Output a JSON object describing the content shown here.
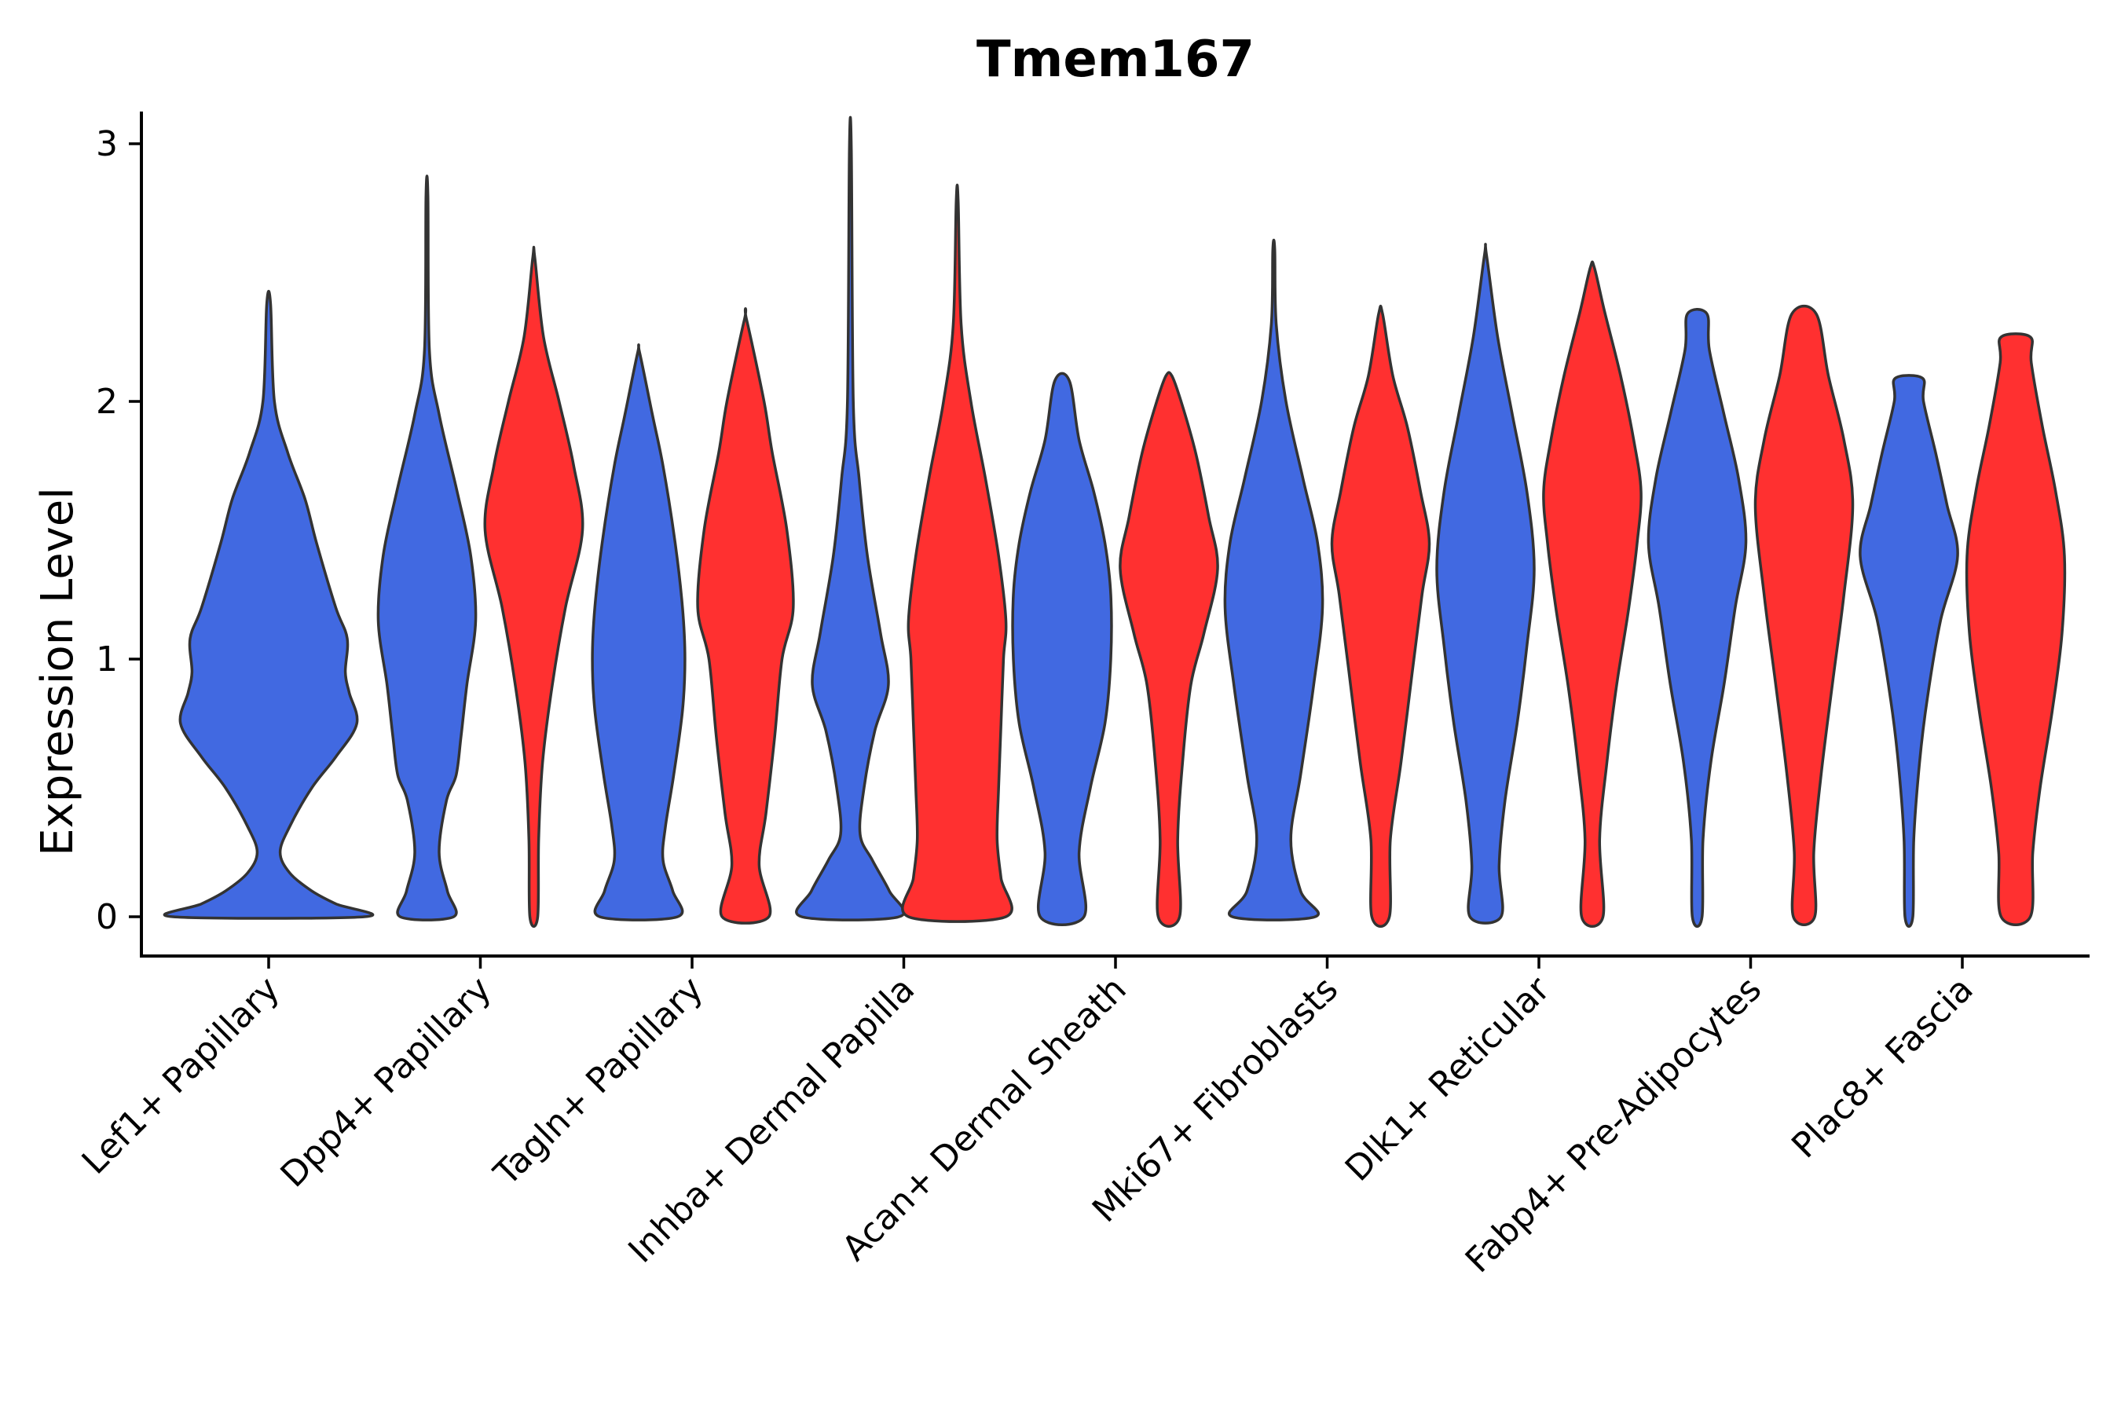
{
  "chart_data": {
    "type": "violin",
    "title": "Tmem167",
    "xlabel": "",
    "ylabel": "Expression Level",
    "ylim": [
      -0.15,
      3.1
    ],
    "yticks": [
      0,
      1,
      2,
      3
    ],
    "grid": false,
    "colors": {
      "blue": "#4169E1",
      "red": "#FF3030"
    },
    "categories": [
      "Lef1+ Papillary",
      "Dpp4+ Papillary",
      "Tagln+ Papillary",
      "Inhba+ Dermal Papilla",
      "Acan+ Dermal Sheath",
      "Mki67+ Fibroblasts",
      "Dlk1+ Reticular",
      "Fabp4+ Pre-Adipocytes",
      "Plac8+ Fascia"
    ],
    "violins": [
      {
        "category": "Lef1+ Papillary",
        "group": "blue",
        "max": 2.38,
        "profile": [
          [
            0,
            1.0
          ],
          [
            0.05,
            0.7
          ],
          [
            0.1,
            0.45
          ],
          [
            0.17,
            0.22
          ],
          [
            0.25,
            0.12
          ],
          [
            0.35,
            0.22
          ],
          [
            0.5,
            0.45
          ],
          [
            0.62,
            0.7
          ],
          [
            0.75,
            0.92
          ],
          [
            0.87,
            0.84
          ],
          [
            0.95,
            0.8
          ],
          [
            1.08,
            0.82
          ],
          [
            1.2,
            0.7
          ],
          [
            1.45,
            0.5
          ],
          [
            1.62,
            0.38
          ],
          [
            1.8,
            0.2
          ],
          [
            2.0,
            0.06
          ],
          [
            2.38,
            0.02
          ]
        ]
      },
      {
        "category": "Dpp4+ Papillary",
        "group": "blue",
        "max": 2.8,
        "profile": [
          [
            0,
            0.55
          ],
          [
            0.1,
            0.42
          ],
          [
            0.25,
            0.25
          ],
          [
            0.45,
            0.4
          ],
          [
            0.55,
            0.6
          ],
          [
            0.7,
            0.7
          ],
          [
            0.9,
            0.82
          ],
          [
            1.15,
            1.0
          ],
          [
            1.4,
            0.9
          ],
          [
            1.65,
            0.62
          ],
          [
            1.95,
            0.25
          ],
          [
            2.2,
            0.05
          ],
          [
            2.8,
            0.02
          ]
        ]
      },
      {
        "category": "Dpp4+ Papillary",
        "group": "red",
        "max": 2.56,
        "profile": [
          [
            0,
            0.08
          ],
          [
            0.3,
            0.1
          ],
          [
            0.6,
            0.18
          ],
          [
            0.9,
            0.38
          ],
          [
            1.2,
            0.65
          ],
          [
            1.5,
            1.0
          ],
          [
            1.75,
            0.82
          ],
          [
            2.0,
            0.52
          ],
          [
            2.25,
            0.2
          ],
          [
            2.56,
            0.02
          ]
        ]
      },
      {
        "category": "Tagln+ Papillary",
        "group": "blue",
        "max": 2.19,
        "profile": [
          [
            0,
            0.8
          ],
          [
            0.1,
            0.7
          ],
          [
            0.22,
            0.5
          ],
          [
            0.35,
            0.55
          ],
          [
            0.55,
            0.72
          ],
          [
            0.8,
            0.9
          ],
          [
            1.0,
            0.95
          ],
          [
            1.2,
            0.9
          ],
          [
            1.45,
            0.75
          ],
          [
            1.75,
            0.5
          ],
          [
            1.95,
            0.28
          ],
          [
            2.19,
            0.02
          ]
        ]
      },
      {
        "category": "Tagln+ Papillary",
        "group": "red",
        "max": 2.32,
        "profile": [
          [
            0,
            0.48
          ],
          [
            0.2,
            0.28
          ],
          [
            0.4,
            0.42
          ],
          [
            0.7,
            0.6
          ],
          [
            1.0,
            0.75
          ],
          [
            1.2,
            0.98
          ],
          [
            1.5,
            0.85
          ],
          [
            1.8,
            0.55
          ],
          [
            2.0,
            0.38
          ],
          [
            2.32,
            0.02
          ]
        ]
      },
      {
        "category": "Inhba+ Dermal Papilla",
        "group": "blue",
        "max": 2.98,
        "profile": [
          [
            0,
            1.0
          ],
          [
            0.1,
            0.8
          ],
          [
            0.22,
            0.45
          ],
          [
            0.32,
            0.2
          ],
          [
            0.5,
            0.28
          ],
          [
            0.72,
            0.5
          ],
          [
            0.9,
            0.78
          ],
          [
            1.1,
            0.62
          ],
          [
            1.4,
            0.35
          ],
          [
            1.7,
            0.18
          ],
          [
            2.0,
            0.06
          ],
          [
            2.98,
            0.02
          ]
        ]
      },
      {
        "category": "Inhba+ Dermal Papilla",
        "group": "red",
        "max": 2.78,
        "profile": [
          [
            0,
            1.0
          ],
          [
            0.15,
            0.9
          ],
          [
            0.3,
            0.82
          ],
          [
            0.5,
            0.85
          ],
          [
            0.75,
            0.9
          ],
          [
            1.0,
            0.95
          ],
          [
            1.15,
            1.0
          ],
          [
            1.4,
            0.85
          ],
          [
            1.7,
            0.58
          ],
          [
            2.0,
            0.28
          ],
          [
            2.3,
            0.08
          ],
          [
            2.78,
            0.02
          ]
        ]
      },
      {
        "category": "Acan+ Dermal Sheath",
        "group": "blue",
        "max": 2.08,
        "profile": [
          [
            0,
            0.45
          ],
          [
            0.25,
            0.35
          ],
          [
            0.5,
            0.58
          ],
          [
            0.75,
            0.88
          ],
          [
            1.0,
            1.0
          ],
          [
            1.25,
            1.0
          ],
          [
            1.45,
            0.88
          ],
          [
            1.65,
            0.65
          ],
          [
            1.85,
            0.35
          ],
          [
            2.08,
            0.15
          ]
        ]
      },
      {
        "category": "Acan+ Dermal Sheath",
        "group": "red",
        "max": 2.1,
        "profile": [
          [
            0,
            0.22
          ],
          [
            0.3,
            0.18
          ],
          [
            0.6,
            0.28
          ],
          [
            0.9,
            0.45
          ],
          [
            1.1,
            0.72
          ],
          [
            1.35,
            1.0
          ],
          [
            1.55,
            0.82
          ],
          [
            1.8,
            0.55
          ],
          [
            2.0,
            0.25
          ],
          [
            2.1,
            0.06
          ]
        ]
      },
      {
        "category": "Mki67+ Fibroblasts",
        "group": "blue",
        "max": 2.59,
        "profile": [
          [
            0,
            0.85
          ],
          [
            0.1,
            0.55
          ],
          [
            0.3,
            0.35
          ],
          [
            0.55,
            0.55
          ],
          [
            0.9,
            0.82
          ],
          [
            1.2,
            1.0
          ],
          [
            1.45,
            0.9
          ],
          [
            1.7,
            0.6
          ],
          [
            2.0,
            0.25
          ],
          [
            2.3,
            0.05
          ],
          [
            2.59,
            0.02
          ]
        ]
      },
      {
        "category": "Mki67+ Fibroblasts",
        "group": "red",
        "max": 2.34,
        "profile": [
          [
            0,
            0.18
          ],
          [
            0.3,
            0.2
          ],
          [
            0.6,
            0.42
          ],
          [
            0.95,
            0.65
          ],
          [
            1.25,
            0.85
          ],
          [
            1.45,
            1.0
          ],
          [
            1.65,
            0.82
          ],
          [
            1.9,
            0.55
          ],
          [
            2.1,
            0.25
          ],
          [
            2.34,
            0.04
          ]
        ]
      },
      {
        "category": "Dlk1+ Reticular",
        "group": "blue",
        "max": 2.57,
        "profile": [
          [
            0,
            0.32
          ],
          [
            0.2,
            0.28
          ],
          [
            0.45,
            0.4
          ],
          [
            0.75,
            0.65
          ],
          [
            1.05,
            0.85
          ],
          [
            1.35,
            1.0
          ],
          [
            1.65,
            0.85
          ],
          [
            1.95,
            0.55
          ],
          [
            2.25,
            0.25
          ],
          [
            2.57,
            0.02
          ]
        ]
      },
      {
        "category": "Dlk1+ Reticular",
        "group": "red",
        "max": 2.52,
        "profile": [
          [
            0,
            0.22
          ],
          [
            0.3,
            0.15
          ],
          [
            0.6,
            0.3
          ],
          [
            0.9,
            0.5
          ],
          [
            1.2,
            0.75
          ],
          [
            1.45,
            0.92
          ],
          [
            1.65,
            1.0
          ],
          [
            1.85,
            0.85
          ],
          [
            2.1,
            0.58
          ],
          [
            2.35,
            0.25
          ],
          [
            2.52,
            0.04
          ]
        ]
      },
      {
        "category": "Fabp4+ Pre-Adipocytes",
        "group": "blue",
        "max": 2.34,
        "profile": [
          [
            0,
            0.1
          ],
          [
            0.3,
            0.12
          ],
          [
            0.6,
            0.28
          ],
          [
            0.9,
            0.55
          ],
          [
            1.2,
            0.78
          ],
          [
            1.45,
            1.0
          ],
          [
            1.7,
            0.85
          ],
          [
            1.95,
            0.55
          ],
          [
            2.2,
            0.25
          ],
          [
            2.34,
            0.2
          ]
        ]
      },
      {
        "category": "Fabp4+ Pre-Adipocytes",
        "group": "red",
        "max": 2.34,
        "profile": [
          [
            0,
            0.22
          ],
          [
            0.25,
            0.2
          ],
          [
            0.55,
            0.35
          ],
          [
            0.9,
            0.58
          ],
          [
            1.25,
            0.82
          ],
          [
            1.6,
            1.0
          ],
          [
            1.85,
            0.82
          ],
          [
            2.1,
            0.5
          ],
          [
            2.34,
            0.25
          ]
        ]
      },
      {
        "category": "Plac8+ Fascia",
        "group": "blue",
        "max": 2.09,
        "profile": [
          [
            0,
            0.08
          ],
          [
            0.3,
            0.1
          ],
          [
            0.6,
            0.22
          ],
          [
            0.85,
            0.38
          ],
          [
            1.15,
            0.65
          ],
          [
            1.4,
            1.0
          ],
          [
            1.6,
            0.78
          ],
          [
            1.8,
            0.55
          ],
          [
            2.0,
            0.3
          ],
          [
            2.09,
            0.28
          ]
        ]
      },
      {
        "category": "Plac8+ Fascia",
        "group": "red",
        "max": 2.25,
        "profile": [
          [
            0,
            0.3
          ],
          [
            0.25,
            0.35
          ],
          [
            0.5,
            0.5
          ],
          [
            0.8,
            0.75
          ],
          [
            1.1,
            0.95
          ],
          [
            1.4,
            1.0
          ],
          [
            1.65,
            0.82
          ],
          [
            1.9,
            0.55
          ],
          [
            2.15,
            0.32
          ],
          [
            2.25,
            0.3
          ]
        ]
      }
    ]
  }
}
